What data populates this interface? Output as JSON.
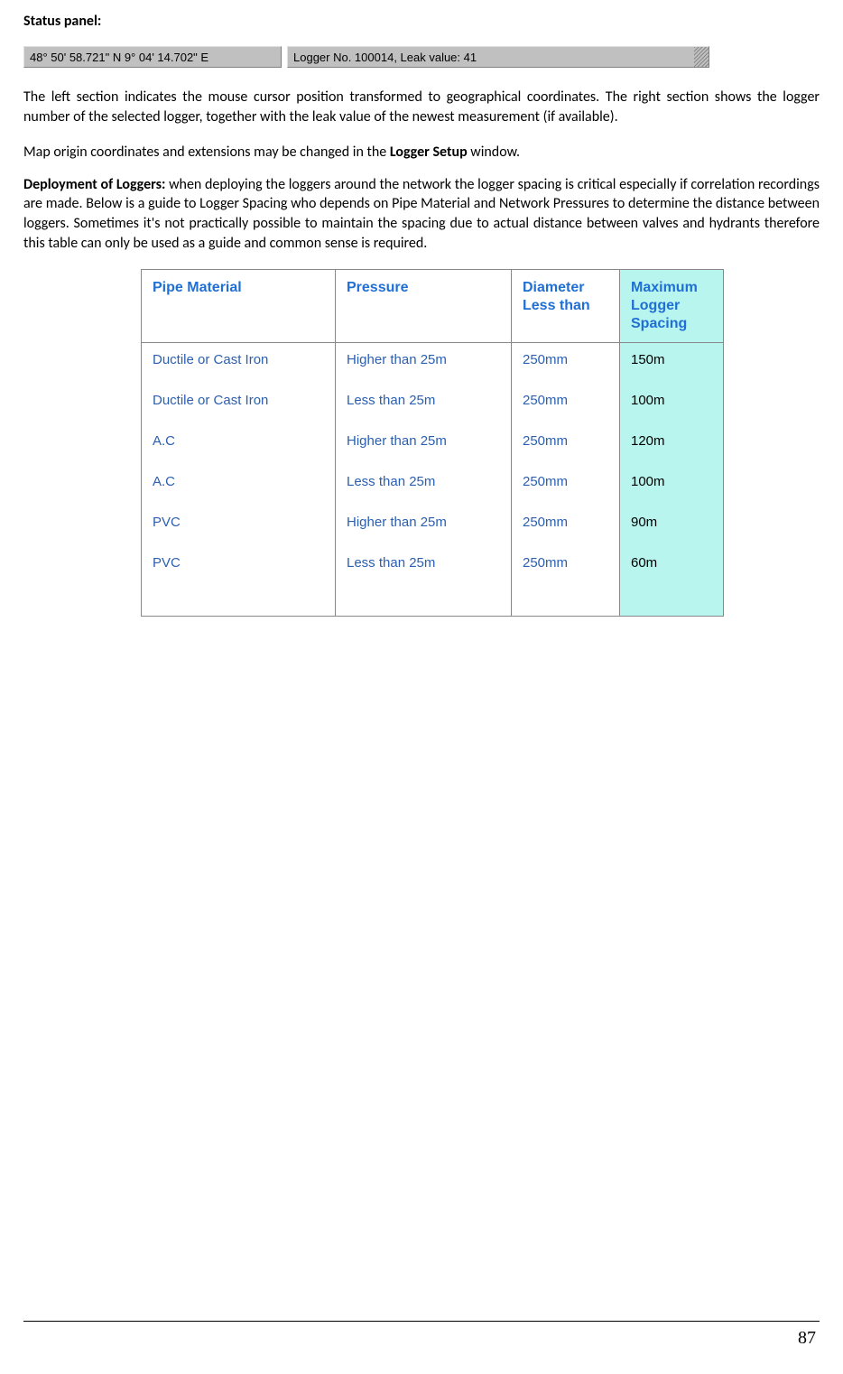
{
  "heading_status": "Status panel:",
  "status_bar": {
    "coords": "48° 50' 58.721\" N    9° 04' 14.702\" E",
    "logger": "Logger No. 100014, Leak value: 41"
  },
  "para1": "The left section indicates the mouse cursor position transformed to geographical coordinates. The right section shows the logger number of the selected logger, together with the leak value of the newest measurement (if available).",
  "para2_pre": "Map origin coordinates and extensions may be changed in the ",
  "para2_bold": "Logger Setup",
  "para2_post": " window.",
  "para3_bold": "Deployment of Loggers:",
  "para3_rest": " when deploying the loggers around the network the logger spacing is critical especially if correlation recordings are made. Below is a guide to Logger Spacing who depends on Pipe Material and Network Pressures to determine the distance between loggers. Sometimes it's not practically possible to maintain the spacing due to actual distance between valves and hydrants therefore this table can only be used as a guide and common sense is required.",
  "table": {
    "headers": {
      "material": "Pipe Material",
      "pressure": "Pressure",
      "diameter": "Diameter Less than",
      "spacing": "Maximum Logger Spacing"
    },
    "rows": [
      {
        "material": "Ductile or Cast Iron",
        "pressure": "Higher than 25m",
        "diameter": "250mm",
        "spacing": "150m"
      },
      {
        "material": "Ductile or Cast Iron",
        "pressure": "Less than   25m",
        "diameter": "250mm",
        "spacing": "100m"
      },
      {
        "material": "A.C",
        "pressure": "Higher than   25m",
        "diameter": "250mm",
        "spacing": "120m"
      },
      {
        "material": "A.C",
        "pressure": "Less than   25m",
        "diameter": "250mm",
        "spacing": "100m"
      },
      {
        "material": "PVC",
        "pressure": "Higher than   25m",
        "diameter": "250mm",
        "spacing": " 90m"
      },
      {
        "material": "PVC",
        "pressure": "Less than   25m",
        "diameter": "250mm",
        "spacing": " 60m"
      }
    ]
  },
  "page_number": "87",
  "colors": {
    "status_bg": "#c0c0c0",
    "header_text": "#1f6fd4",
    "cell_text": "#2b5fb0",
    "spacing_bg": "#b8f5ee"
  }
}
